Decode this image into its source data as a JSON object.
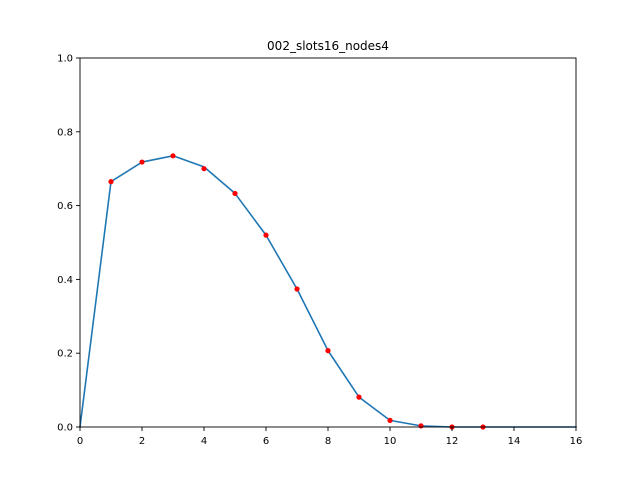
{
  "chart_data": {
    "type": "line",
    "title": "002_slots16_nodes4",
    "xlabel": "",
    "ylabel": "",
    "xlim": [
      0,
      16
    ],
    "ylim": [
      0,
      1.0
    ],
    "grid": false,
    "xticks": [
      0,
      2,
      4,
      6,
      8,
      10,
      12,
      14,
      16
    ],
    "xtick_labels": [
      "0",
      "2",
      "4",
      "6",
      "8",
      "10",
      "12",
      "14",
      "16"
    ],
    "yticks": [
      0,
      0.2,
      0.4,
      0.6,
      0.8,
      1.0
    ],
    "ytick_labels": [
      "0.0",
      "0.2",
      "0.4",
      "0.6",
      "0.8",
      "1.0"
    ],
    "series": [
      {
        "kind": "line",
        "color": "#1f77b4",
        "x": [
          0,
          1,
          2,
          3,
          4,
          5,
          6,
          7,
          8,
          9,
          10,
          11,
          12,
          13,
          14,
          15,
          16
        ],
        "y": [
          0.0,
          0.665,
          0.718,
          0.735,
          0.705,
          0.633,
          0.52,
          0.374,
          0.207,
          0.081,
          0.018,
          0.003,
          0.0,
          0.0,
          0.0,
          0.0,
          0.0
        ]
      },
      {
        "kind": "points",
        "color": "#ff0000",
        "x": [
          1,
          2,
          3,
          4,
          5,
          6,
          7,
          8,
          9,
          10,
          11,
          12,
          13
        ],
        "y": [
          0.665,
          0.718,
          0.735,
          0.7,
          0.633,
          0.52,
          0.374,
          0.207,
          0.081,
          0.018,
          0.003,
          0.0,
          0.0
        ]
      }
    ]
  }
}
